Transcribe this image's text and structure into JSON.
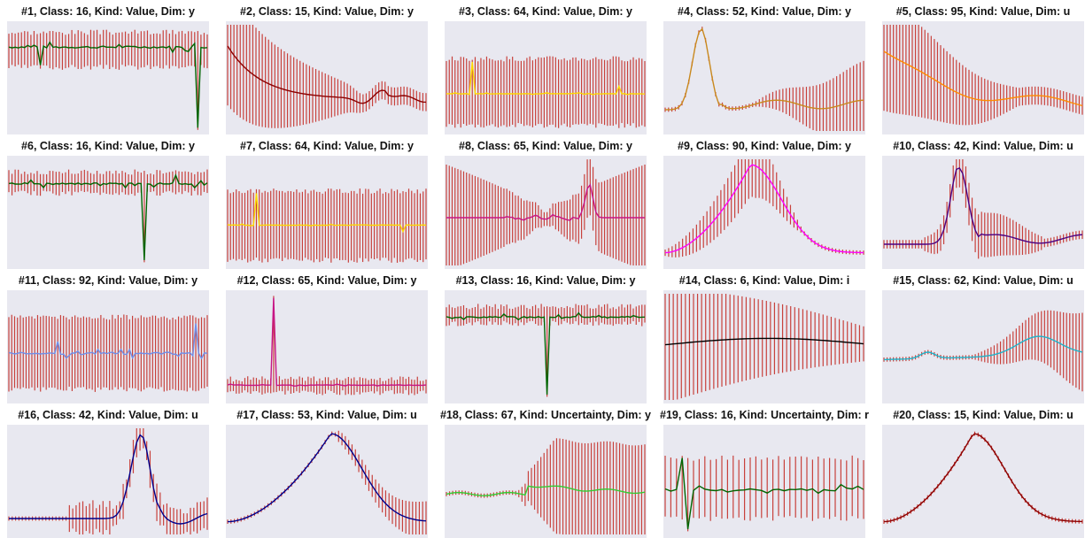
{
  "chart_data": [
    {
      "type": "line",
      "title": "#1, Class: 16, Kind: Value, Dim: y",
      "color": "#006400",
      "ylim": [
        0,
        1
      ],
      "shape": "flat-spikes",
      "base": 0.79,
      "amp": 0.1,
      "lo": 0.0,
      "hi": 1.0,
      "n": 64,
      "errLo": 0.6,
      "errHi": 0.93,
      "errStyle": "const",
      "spikes": [
        {
          "x": 0.16,
          "v": 0.62
        },
        {
          "x": 0.96,
          "v": 0.03
        }
      ],
      "y": []
    },
    {
      "type": "line",
      "title": "#2, Class: 15, Kind: Value, Dim: y",
      "color": "#8b0000",
      "ylim": [
        0,
        1
      ],
      "shape": "decay-bump",
      "n": 64,
      "errStyle": "shrink",
      "y": []
    },
    {
      "type": "line",
      "title": "#3, Class: 64, Kind: Value, Dim: y",
      "color": "#ffd700",
      "ylim": [
        0,
        1
      ],
      "shape": "flat-spikes",
      "base": 0.35,
      "amp": 0.02,
      "n": 70,
      "errLo": 0.05,
      "errHi": 0.68,
      "errStyle": "const",
      "spikes": [
        {
          "x": 0.13,
          "v": 0.65
        },
        {
          "x": 0.87,
          "v": 0.42
        }
      ],
      "y": []
    },
    {
      "type": "line",
      "title": "#4, Class: 52, Kind: Value, Dim: y",
      "color": "#c9891e",
      "ylim": [
        0,
        1
      ],
      "shape": "peak-wave",
      "peakX": 0.18,
      "n": 60,
      "errStyle": "grow",
      "y": []
    },
    {
      "type": "line",
      "title": "#5, Class: 95, Kind: Value, Dim: u",
      "color": "#ff8c00",
      "ylim": [
        0,
        1
      ],
      "shape": "decay-wave",
      "n": 64,
      "errStyle": "shrink",
      "y": []
    },
    {
      "type": "line",
      "title": "#6, Class: 16, Kind: Value, Dim: y",
      "color": "#006400",
      "ylim": [
        0,
        1
      ],
      "shape": "flat-spikes",
      "base": 0.77,
      "amp": 0.08,
      "n": 64,
      "errLo": 0.68,
      "errHi": 0.88,
      "errStyle": "const",
      "spikes": [
        {
          "x": 0.68,
          "v": 0.05
        },
        {
          "x": 0.84,
          "v": 0.85
        }
      ],
      "y": []
    },
    {
      "type": "line",
      "title": "#7, Class: 64, Kind: Value, Dim: y",
      "color": "#ffd700",
      "ylim": [
        0,
        1
      ],
      "shape": "flat-spikes",
      "base": 0.38,
      "amp": 0.02,
      "n": 70,
      "errLo": 0.05,
      "errHi": 0.7,
      "errStyle": "const",
      "spikes": [
        {
          "x": 0.15,
          "v": 0.68
        },
        {
          "x": 0.88,
          "v": 0.32
        }
      ],
      "y": []
    },
    {
      "type": "line",
      "title": "#8, Class: 65, Kind: Value, Dim: y",
      "color": "#c71585",
      "ylim": [
        0,
        1
      ],
      "shape": "mid-spike",
      "n": 70,
      "errStyle": "hourglass",
      "y": []
    },
    {
      "type": "line",
      "title": "#9, Class: 90, Kind: Value, Dim: y",
      "color": "#ff00ff",
      "ylim": [
        0,
        1
      ],
      "shape": "peak-decay",
      "peakX": 0.43,
      "n": 58,
      "errStyle": "grow-shrink",
      "y": []
    },
    {
      "type": "line",
      "title": "#10, Class: 42, Kind: Value, Dim: u",
      "color": "#4b0082",
      "ylim": [
        0,
        1
      ],
      "shape": "peak-wave",
      "peakX": 0.38,
      "n": 64,
      "errStyle": "mid",
      "y": []
    },
    {
      "type": "line",
      "title": "#11, Class: 92, Kind: Value, Dim: y",
      "color": "#6f8ee8",
      "ylim": [
        0,
        1
      ],
      "shape": "flat-spikes",
      "base": 0.44,
      "amp": 0.1,
      "n": 70,
      "errLo": 0.1,
      "errHi": 0.78,
      "errStyle": "const",
      "spikes": [
        {
          "x": 0.25,
          "v": 0.55
        },
        {
          "x": 0.94,
          "v": 0.72
        }
      ],
      "y": []
    },
    {
      "type": "line",
      "title": "#12, Class: 65, Kind: Value, Dim: y",
      "color": "#c71585",
      "ylim": [
        0,
        1
      ],
      "shape": "flat-spikes",
      "base": 0.14,
      "amp": 0.02,
      "n": 70,
      "errLo": 0.07,
      "errHi": 0.2,
      "errStyle": "const",
      "spikes": [
        {
          "x": 0.23,
          "v": 0.96
        }
      ],
      "y": []
    },
    {
      "type": "line",
      "title": "#13, Class: 16, Kind: Value, Dim: y",
      "color": "#006400",
      "ylim": [
        0,
        1
      ],
      "shape": "flat-spikes",
      "base": 0.78,
      "amp": 0.06,
      "n": 70,
      "errLo": 0.72,
      "errHi": 0.88,
      "errStyle": "const",
      "spikes": [
        {
          "x": 0.5,
          "v": 0.05
        },
        {
          "x": 0.66,
          "v": 0.82
        }
      ],
      "y": []
    },
    {
      "type": "line",
      "title": "#14, Class: 6, Kind: Value, Dim: i",
      "color": "#000000",
      "ylim": [
        0,
        1
      ],
      "shape": "gentle",
      "n": 50,
      "errStyle": "shrink-end",
      "y": []
    },
    {
      "type": "line",
      "title": "#15, Class: 62, Kind: Value, Dim: u",
      "color": "#20b2c8",
      "ylim": [
        0,
        1
      ],
      "shape": "two-bumps",
      "n": 64,
      "errStyle": "grow",
      "y": []
    },
    {
      "type": "line",
      "title": "#16, Class: 42, Kind: Value, Dim: u",
      "color": "#00008b",
      "ylim": [
        0,
        1
      ],
      "shape": "late-peak",
      "peakX": 0.67,
      "n": 60,
      "errStyle": "mid-late",
      "y": []
    },
    {
      "type": "line",
      "title": "#17, Class: 53, Kind: Value, Dim: u",
      "color": "#00008b",
      "ylim": [
        0,
        1
      ],
      "shape": "peak-decay",
      "peakX": 0.52,
      "n": 60,
      "errStyle": "late",
      "y": []
    },
    {
      "type": "line",
      "title": "#18, Class: 67, Kind: Uncertainty, Dim: y",
      "color": "#32cd32",
      "ylim": [
        0,
        1
      ],
      "shape": "flat-rise",
      "n": 64,
      "errStyle": "late-big",
      "y": []
    },
    {
      "type": "line",
      "title": "#19, Class: 16, Kind: Uncertainty, Dim: r",
      "color": "#006400",
      "ylim": [
        0,
        1
      ],
      "shape": "flat-spikes",
      "base": 0.42,
      "amp": 0.1,
      "n": 36,
      "errLo": 0.15,
      "errHi": 0.72,
      "errStyle": "const",
      "spikes": [
        {
          "x": 0.08,
          "v": 0.72
        },
        {
          "x": 0.12,
          "v": 0.05
        }
      ],
      "y": []
    },
    {
      "type": "line",
      "title": "#20, Class: 15, Kind: Value, Dim: u",
      "color": "#8b0000",
      "ylim": [
        0,
        1
      ],
      "shape": "peak-decay",
      "peakX": 0.45,
      "n": 60,
      "errStyle": "small",
      "y": []
    }
  ]
}
